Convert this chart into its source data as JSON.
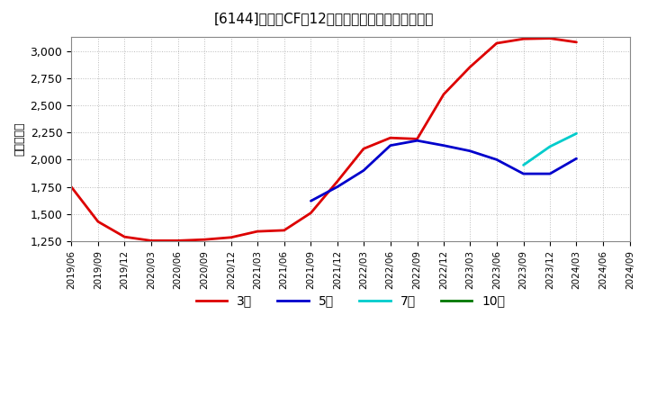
{
  "title": "[6144]　営業CFの12か月移動合計の平均値の推移",
  "ylabel": "（百万円）",
  "ylim": [
    1250,
    3125
  ],
  "yticks": [
    1250,
    1500,
    1750,
    2000,
    2250,
    2500,
    2750,
    3000
  ],
  "background_color": "#ffffff",
  "plot_bg_color": "#ffffff",
  "grid_color": "#aaaaaa",
  "series": {
    "3year": {
      "label": "3年",
      "color": "#dd0000",
      "dates": [
        "2019-06",
        "2019-09",
        "2019-12",
        "2020-03",
        "2020-06",
        "2020-09",
        "2020-12",
        "2021-03",
        "2021-06",
        "2021-09",
        "2021-12",
        "2022-03",
        "2022-06",
        "2022-09",
        "2022-12",
        "2023-03",
        "2023-06",
        "2023-09",
        "2023-12",
        "2024-03"
      ],
      "values": [
        1750,
        1430,
        1290,
        1255,
        1255,
        1265,
        1285,
        1340,
        1350,
        1510,
        1800,
        2100,
        2200,
        2190,
        2600,
        2850,
        3070,
        3110,
        3115,
        3080
      ]
    },
    "5year": {
      "label": "5年",
      "color": "#0000cc",
      "dates": [
        "2021-09",
        "2021-12",
        "2022-03",
        "2022-06",
        "2022-09",
        "2022-12",
        "2023-03",
        "2023-06",
        "2023-09",
        "2023-12",
        "2024-03"
      ],
      "values": [
        1620,
        1750,
        1900,
        2130,
        2175,
        2130,
        2080,
        2000,
        1870,
        1870,
        2010
      ]
    },
    "7year": {
      "label": "7年",
      "color": "#00cccc",
      "dates": [
        "2023-09",
        "2023-12",
        "2024-03"
      ],
      "values": [
        1950,
        2120,
        2240
      ]
    },
    "10year": {
      "label": "10年",
      "color": "#007700",
      "dates": [],
      "values": []
    }
  },
  "legend_labels": [
    "3年",
    "5年",
    "7年",
    "10年"
  ],
  "legend_colors": [
    "#dd0000",
    "#0000cc",
    "#00cccc",
    "#007700"
  ]
}
